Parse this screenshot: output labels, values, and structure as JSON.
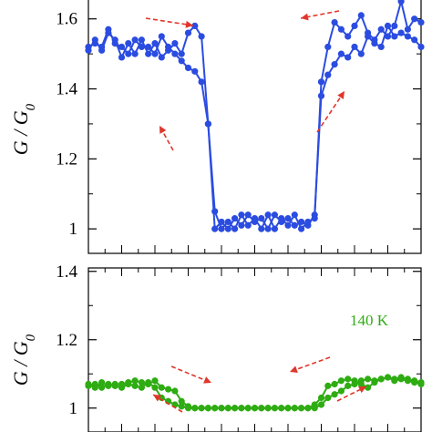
{
  "chart_data": [
    {
      "type": "line",
      "ylabel": "G / G",
      "ylabel_subscript": "0",
      "ylim": [
        0.93,
        1.68
      ],
      "xlim": [
        0,
        100
      ],
      "yticks": [
        1,
        1.2,
        1.4,
        1.6
      ],
      "ytick_labels": [
        "1",
        "1.2",
        "1.4",
        "1.6"
      ],
      "color": "#2b4ce0",
      "arrow_color": "#e0362b",
      "series": [
        {
          "x": [
            0,
            2,
            4,
            6,
            8,
            10,
            12,
            14,
            16,
            18,
            20,
            22,
            24,
            26,
            28,
            30,
            32,
            34,
            36,
            38,
            40,
            42,
            44,
            46,
            48,
            50,
            52,
            54,
            56,
            58,
            60,
            62,
            64,
            66,
            68,
            70,
            72,
            74,
            76,
            78,
            80,
            82,
            84,
            86,
            88,
            90,
            92,
            94,
            96,
            98,
            100
          ],
          "y": [
            1.52,
            1.53,
            1.52,
            1.57,
            1.53,
            1.52,
            1.5,
            1.54,
            1.52,
            1.52,
            1.5,
            1.55,
            1.52,
            1.5,
            1.48,
            1.46,
            1.45,
            1.42,
            1.3,
            1.0,
            1.02,
            1.0,
            1.03,
            1.01,
            1.04,
            1.02,
            1.03,
            1.0,
            1.04,
            1.02,
            1.03,
            1.01,
            1.02,
            1.01,
            1.04,
            1.38,
            1.44,
            1.47,
            1.5,
            1.49,
            1.52,
            1.5,
            1.55,
            1.53,
            1.52,
            1.58,
            1.55,
            1.56,
            1.55,
            1.54,
            1.52
          ]
        },
        {
          "x": [
            0,
            2,
            4,
            6,
            8,
            10,
            12,
            14,
            16,
            18,
            20,
            22,
            24,
            26,
            28,
            30,
            32,
            34,
            36,
            38,
            40,
            42,
            44,
            46,
            48,
            50,
            52,
            54,
            56,
            58,
            60,
            62,
            64,
            66,
            68,
            70,
            72,
            74,
            76,
            78,
            80,
            82,
            84,
            86,
            88,
            90,
            92,
            94,
            96,
            98,
            100
          ],
          "y": [
            1.51,
            1.54,
            1.51,
            1.56,
            1.54,
            1.49,
            1.53,
            1.5,
            1.54,
            1.5,
            1.53,
            1.49,
            1.51,
            1.53,
            1.5,
            1.56,
            1.58,
            1.55,
            1.3,
            1.05,
            1.0,
            1.02,
            1.0,
            1.04,
            1.01,
            1.03,
            1.0,
            1.04,
            1.0,
            1.03,
            1.01,
            1.04,
            1.0,
            1.02,
            1.03,
            1.42,
            1.52,
            1.59,
            1.57,
            1.55,
            1.58,
            1.61,
            1.56,
            1.54,
            1.57,
            1.55,
            1.58,
            1.65,
            1.57,
            1.6,
            1.59
          ]
        }
      ]
    },
    {
      "type": "line",
      "ylabel": "G / G",
      "ylabel_subscript": "0",
      "ylim": [
        0.93,
        1.41
      ],
      "xlim": [
        0,
        100
      ],
      "yticks": [
        1,
        1.2,
        1.4
      ],
      "ytick_labels": [
        "1",
        "1.2",
        "1.4"
      ],
      "color": "#2eac12",
      "arrow_color": "#e0362b",
      "annotation": "140 K",
      "series": [
        {
          "x": [
            0,
            2,
            4,
            6,
            8,
            10,
            12,
            14,
            16,
            18,
            20,
            22,
            24,
            26,
            28,
            30,
            32,
            34,
            36,
            38,
            40,
            42,
            44,
            46,
            48,
            50,
            52,
            54,
            56,
            58,
            60,
            62,
            64,
            66,
            68,
            70,
            72,
            74,
            76,
            78,
            80,
            82,
            84,
            86,
            88,
            90,
            92,
            94,
            96,
            98,
            100
          ],
          "y": [
            1.065,
            1.07,
            1.06,
            1.07,
            1.065,
            1.06,
            1.07,
            1.065,
            1.06,
            1.075,
            1.06,
            1.03,
            1.02,
            1.01,
            1.005,
            1.0,
            1.0,
            1.0,
            1.0,
            1.0,
            1.0,
            1.0,
            1.0,
            1.0,
            1.0,
            1.0,
            1.0,
            1.0,
            1.0,
            1.0,
            1.0,
            1.0,
            1.0,
            1.0,
            1.0,
            1.01,
            1.03,
            1.04,
            1.05,
            1.065,
            1.07,
            1.08,
            1.085,
            1.08,
            1.085,
            1.09,
            1.08,
            1.085,
            1.08,
            1.075,
            1.07
          ]
        },
        {
          "x": [
            0,
            2,
            4,
            6,
            8,
            10,
            12,
            14,
            16,
            18,
            20,
            22,
            24,
            26,
            28,
            30,
            32,
            34,
            36,
            38,
            40,
            42,
            44,
            46,
            48,
            50,
            52,
            54,
            56,
            58,
            60,
            62,
            64,
            66,
            68,
            70,
            72,
            74,
            76,
            78,
            80,
            82,
            84,
            86,
            88,
            90,
            92,
            94,
            96,
            98,
            100
          ],
          "y": [
            1.07,
            1.06,
            1.075,
            1.065,
            1.07,
            1.07,
            1.075,
            1.08,
            1.075,
            1.07,
            1.08,
            1.06,
            1.055,
            1.05,
            1.02,
            1.005,
            1.0,
            1.0,
            1.0,
            1.0,
            1.0,
            1.0,
            1.0,
            1.0,
            1.0,
            1.0,
            1.0,
            1.0,
            1.0,
            1.0,
            1.0,
            1.0,
            1.0,
            1.0,
            1.01,
            1.03,
            1.065,
            1.07,
            1.08,
            1.085,
            1.08,
            1.07,
            1.06,
            1.075,
            1.085,
            1.09,
            1.085,
            1.09,
            1.085,
            1.08,
            1.075
          ]
        }
      ]
    }
  ]
}
